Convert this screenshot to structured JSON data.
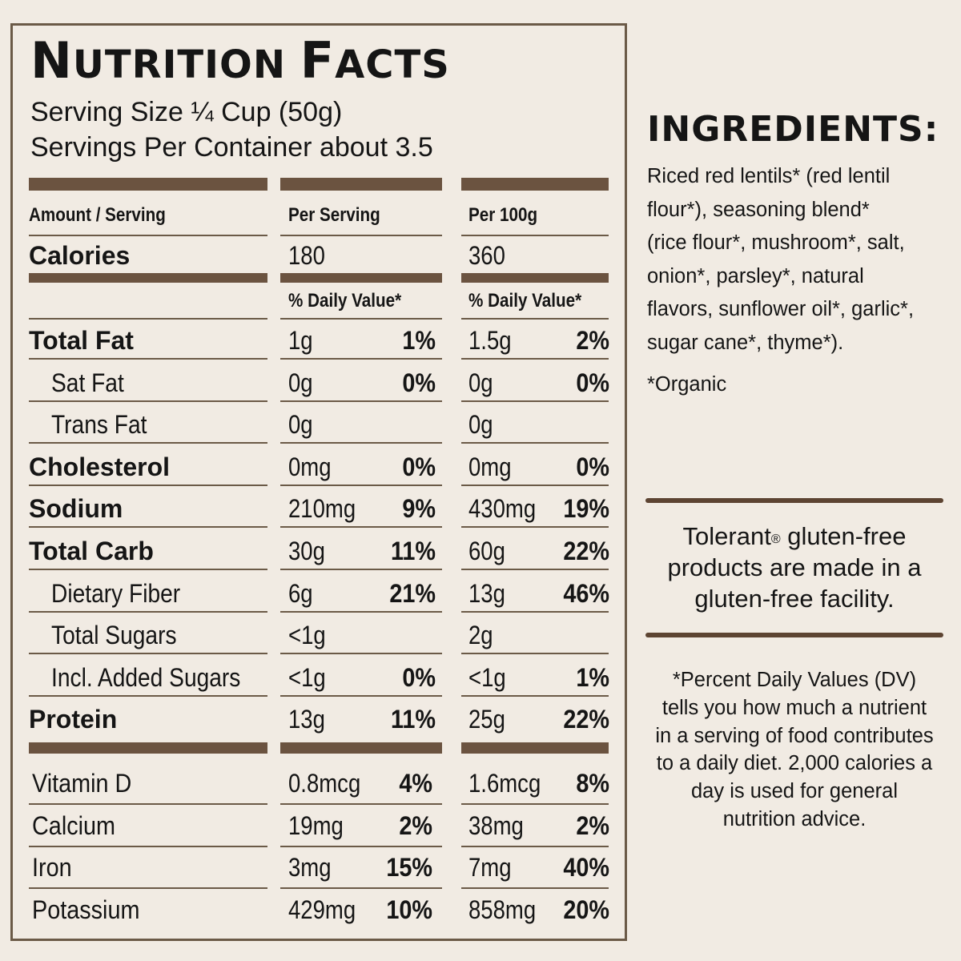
{
  "label": {
    "title_big": "N",
    "title_rest": "UTRITION ",
    "title_big2": "F",
    "title_rest2": "ACTS",
    "serving_size": "Serving Size ¼ Cup (50g)",
    "servings_per_container": "Servings Per Container about 3.5",
    "col_headers": [
      "Amount / Serving",
      "Per Serving",
      "Per 100g"
    ],
    "calories": {
      "label": "Calories",
      "per_serving": "180",
      "per_100g": "360"
    },
    "daily_value_header": "% Daily Value*",
    "rows": [
      {
        "label": "Total Fat",
        "bold": true,
        "indent": false,
        "s_amt": "1g",
        "s_dv": "1%",
        "h_amt": "1.5g",
        "h_dv": "2%"
      },
      {
        "label": "Sat Fat",
        "bold": false,
        "indent": true,
        "s_amt": "0g",
        "s_dv": "0%",
        "h_amt": "0g",
        "h_dv": "0%"
      },
      {
        "label": "Trans Fat",
        "bold": false,
        "indent": true,
        "s_amt": "0g",
        "s_dv": "",
        "h_amt": "0g",
        "h_dv": ""
      },
      {
        "label": "Cholesterol",
        "bold": true,
        "indent": false,
        "s_amt": "0mg",
        "s_dv": "0%",
        "h_amt": "0mg",
        "h_dv": "0%"
      },
      {
        "label": "Sodium",
        "bold": true,
        "indent": false,
        "s_amt": "210mg",
        "s_dv": "9%",
        "h_amt": "430mg",
        "h_dv": "19%"
      },
      {
        "label": "Total Carb",
        "bold": true,
        "indent": false,
        "s_amt": "30g",
        "s_dv": "11%",
        "h_amt": "60g",
        "h_dv": "22%"
      },
      {
        "label": "Dietary Fiber",
        "bold": false,
        "indent": true,
        "s_amt": "6g",
        "s_dv": "21%",
        "h_amt": "13g",
        "h_dv": "46%"
      },
      {
        "label": "Total Sugars",
        "bold": false,
        "indent": true,
        "s_amt": "<1g",
        "s_dv": "",
        "h_amt": "2g",
        "h_dv": ""
      },
      {
        "label": "Incl. Added Sugars",
        "bold": false,
        "indent": true,
        "s_amt": "<1g",
        "s_dv": "0%",
        "h_amt": "<1g",
        "h_dv": "1%"
      },
      {
        "label": "Protein",
        "bold": true,
        "indent": false,
        "s_amt": "13g",
        "s_dv": "11%",
        "h_amt": "25g",
        "h_dv": "22%"
      }
    ],
    "vitamins": [
      {
        "label": "Vitamin D",
        "s_amt": "0.8mcg",
        "s_dv": "4%",
        "h_amt": "1.6mcg",
        "h_dv": "8%"
      },
      {
        "label": "Calcium",
        "s_amt": "19mg",
        "s_dv": "2%",
        "h_amt": "38mg",
        "h_dv": "2%"
      },
      {
        "label": "Iron",
        "s_amt": "3mg",
        "s_dv": "15%",
        "h_amt": "7mg",
        "h_dv": "40%"
      },
      {
        "label": "Potassium",
        "s_amt": "429mg",
        "s_dv": "10%",
        "h_amt": "858mg",
        "h_dv": "20%"
      }
    ]
  },
  "ingredients": {
    "title": "INGREDIENTS:",
    "lines": [
      "Riced red lentils* (red lentil",
      "flour*), seasoning blend*",
      "(rice flour*, mushroom*, salt,",
      "onion*, parsley*, natural",
      "flavors, sunflower oil*, garlic*,",
      "sugar cane*, thyme*)."
    ],
    "organic_note": "*Organic"
  },
  "facility": {
    "brand": "Tolerant",
    "registered": "®",
    "lines": [
      "gluten-free",
      "products are made in a",
      "gluten-free facility."
    ]
  },
  "dv_note": {
    "lines": [
      "*Percent Daily Values (DV)",
      "tells you how much a nutrient",
      "in a serving of food contributes",
      "to a daily diet. 2,000 calories a",
      "day is used for general",
      "nutrition advice."
    ]
  },
  "colors": {
    "background": "#f1ebe3",
    "rule_brown": "#6b5340",
    "text": "#151515"
  }
}
